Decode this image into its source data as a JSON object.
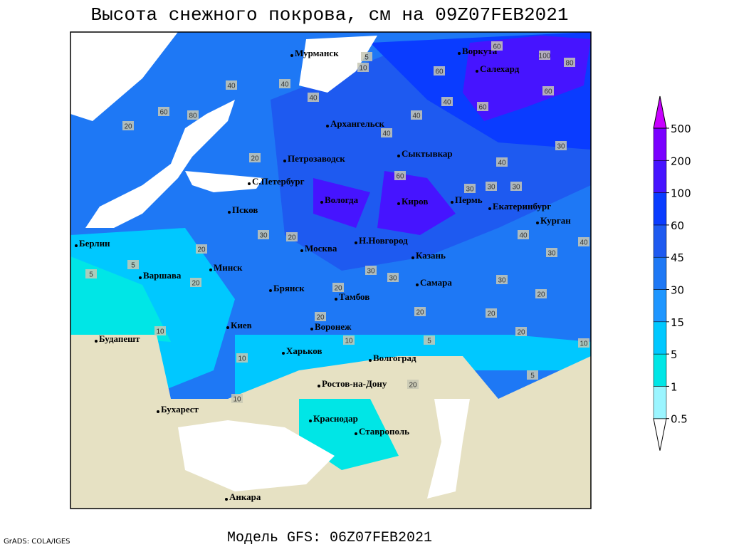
{
  "header": {
    "title": "Высота снежного покрова, см на 09Z07FEB2021"
  },
  "cities": [
    "Мурманск",
    "Воркута",
    "Салехард",
    "Архангельск",
    "Петрозаводск",
    "Сыктывкар",
    "С.Петербург",
    "Вологда",
    "Киров",
    "Пермь",
    "Екатеринбург",
    "Курган",
    "Псков",
    "Москва",
    "Н.Новгород",
    "Казань",
    "Берлин",
    "Варшава",
    "Минск",
    "Брянск",
    "Тамбов",
    "Самара",
    "Воронеж",
    "Киев",
    "Будапешт",
    "Харьков",
    "Волгоград",
    "Ростов-на-Дону",
    "Бухарест",
    "Краснодар",
    "Ставрополь",
    "Анкара"
  ],
  "contour_labels": [
    60,
    100,
    80,
    60,
    60,
    40,
    60,
    40,
    40,
    60,
    30,
    30,
    30,
    30,
    40,
    40,
    30,
    30,
    20,
    20,
    20,
    10,
    5,
    40,
    20,
    30,
    30,
    20,
    20,
    10,
    5,
    20,
    20,
    10,
    10,
    5,
    20,
    20,
    40,
    60,
    80,
    40,
    40,
    5,
    10,
    20,
    30,
    10,
    20,
    5
  ],
  "legend": {
    "levels": [
      0.5,
      1,
      5,
      15,
      30,
      45,
      60,
      100,
      200,
      500
    ],
    "colors": [
      "#ffffff",
      "#9bf5ff",
      "#00e6e6",
      "#00c8ff",
      "#1e96ff",
      "#1e78f5",
      "#1e5af0",
      "#0a3cff",
      "#4614ff",
      "#7a00ff",
      "#a000f0",
      "#c800ff"
    ]
  },
  "footer": {
    "credit": "GrADS: COLA/IGES",
    "model": "Модель GFS: 06Z07FEB2021"
  }
}
